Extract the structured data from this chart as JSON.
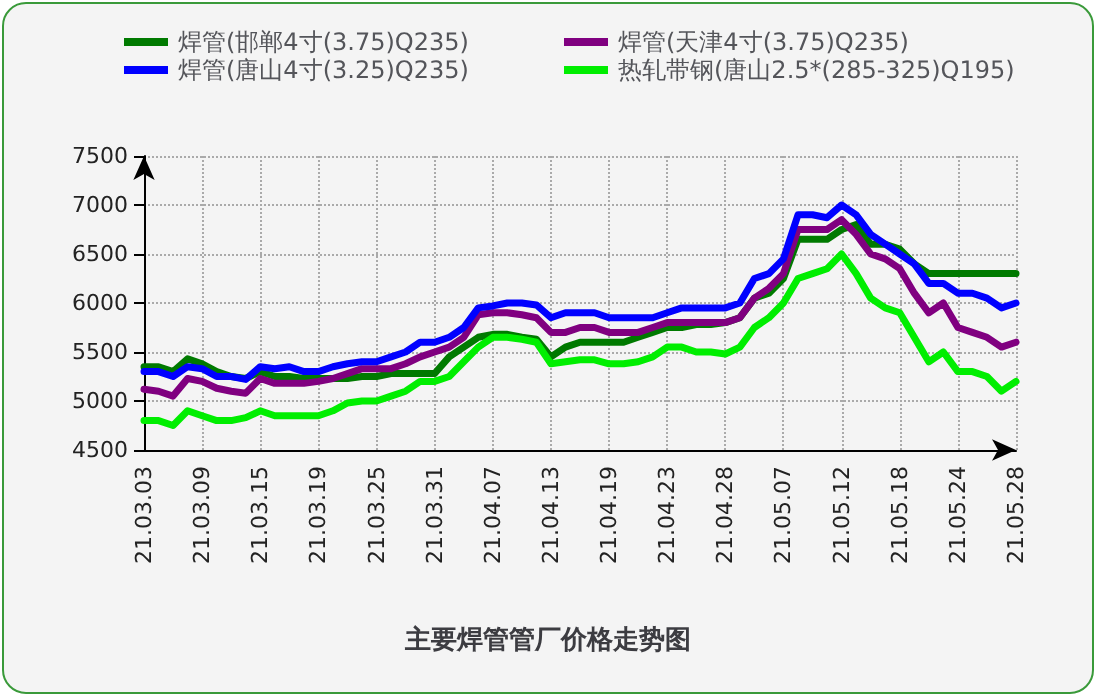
{
  "chart_data": {
    "type": "line",
    "title": "主要焊管管厂价格走势图",
    "categories": [
      "21.03.03",
      null,
      null,
      null,
      "21.03.09",
      null,
      null,
      null,
      "21.03.15",
      null,
      null,
      null,
      "21.03.19",
      null,
      null,
      null,
      "21.03.25",
      null,
      null,
      null,
      "21.03.31",
      null,
      null,
      null,
      "21.04.07",
      null,
      null,
      null,
      "21.04.13",
      null,
      null,
      null,
      "21.04.19",
      null,
      null,
      null,
      "21.04.23",
      null,
      null,
      null,
      "21.04.28",
      null,
      null,
      null,
      "21.05.07",
      null,
      null,
      null,
      "21.05.12",
      null,
      null,
      null,
      "21.05.18",
      null,
      null,
      null,
      "21.05.24",
      null,
      null,
      null,
      "21.05.28"
    ],
    "series": [
      {
        "name": "焊管(邯郸4寸(3.75)Q235)",
        "color": "#007a00",
        "values": [
          5350,
          5350,
          5300,
          5430,
          5380,
          5300,
          5250,
          5230,
          5300,
          5250,
          5250,
          5230,
          5230,
          5230,
          5230,
          5250,
          5250,
          5280,
          5280,
          5280,
          5280,
          5450,
          5550,
          5650,
          5680,
          5680,
          5650,
          5630,
          5450,
          5550,
          5600,
          5600,
          5600,
          5600,
          5650,
          5700,
          5750,
          5750,
          5780,
          5780,
          5800,
          5850,
          6050,
          6100,
          6250,
          6650,
          6650,
          6650,
          6750,
          6800,
          6600,
          6600,
          6550,
          6400,
          6300,
          6300,
          6300,
          6300,
          6300,
          6300,
          6300
        ]
      },
      {
        "name": "焊管(天津4寸(3.75)Q235)",
        "color": "#800080",
        "values": [
          5120,
          5100,
          5050,
          5230,
          5200,
          5130,
          5100,
          5080,
          5230,
          5180,
          5180,
          5180,
          5200,
          5230,
          5280,
          5330,
          5330,
          5330,
          5380,
          5450,
          5500,
          5550,
          5650,
          5880,
          5900,
          5900,
          5880,
          5850,
          5700,
          5700,
          5750,
          5750,
          5700,
          5700,
          5700,
          5750,
          5800,
          5800,
          5800,
          5800,
          5800,
          5850,
          6050,
          6150,
          6300,
          6750,
          6750,
          6750,
          6850,
          6700,
          6500,
          6450,
          6350,
          6100,
          5900,
          6000,
          5750,
          5700,
          5650,
          5550,
          5600
        ]
      },
      {
        "name": "焊管(唐山4寸(3.25)Q235)",
        "color": "#0000ff",
        "values": [
          5300,
          5300,
          5250,
          5350,
          5330,
          5250,
          5250,
          5220,
          5350,
          5330,
          5350,
          5300,
          5300,
          5350,
          5380,
          5400,
          5400,
          5450,
          5500,
          5600,
          5600,
          5650,
          5750,
          5950,
          5970,
          6000,
          6000,
          5980,
          5850,
          5900,
          5900,
          5900,
          5850,
          5850,
          5850,
          5850,
          5900,
          5950,
          5950,
          5950,
          5950,
          6000,
          6250,
          6300,
          6450,
          6900,
          6900,
          6870,
          7000,
          6900,
          6700,
          6600,
          6500,
          6400,
          6200,
          6200,
          6100,
          6100,
          6050,
          5950,
          6000
        ]
      },
      {
        "name": "热轧带钢(唐山2.5*(285-325)Q195)",
        "color": "#00ee00",
        "values": [
          4800,
          4800,
          4750,
          4900,
          4850,
          4800,
          4800,
          4830,
          4900,
          4850,
          4850,
          4850,
          4850,
          4900,
          4980,
          5000,
          5000,
          5050,
          5100,
          5200,
          5200,
          5250,
          5400,
          5550,
          5650,
          5650,
          5630,
          5600,
          5380,
          5400,
          5420,
          5420,
          5380,
          5380,
          5400,
          5450,
          5550,
          5550,
          5500,
          5500,
          5480,
          5550,
          5750,
          5850,
          6000,
          6250,
          6300,
          6350,
          6500,
          6300,
          6050,
          5950,
          5900,
          5650,
          5400,
          5500,
          5300,
          5300,
          5250,
          5100,
          5200
        ]
      }
    ],
    "ylim": [
      4500,
      7500
    ],
    "yticks": [
      4500,
      5000,
      5500,
      6000,
      6500,
      7000,
      7500
    ],
    "grid": true,
    "legend": "top",
    "marker": "none",
    "line_style": "solid"
  }
}
